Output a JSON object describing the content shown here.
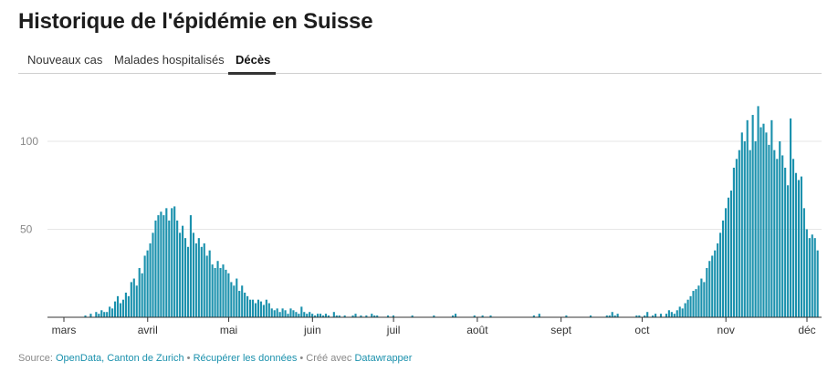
{
  "header": {
    "title": "Historique de l'épidémie en Suisse"
  },
  "tabs": [
    {
      "label": "Nouveaux cas",
      "active": false
    },
    {
      "label": "Malades hospitalisés",
      "active": false
    },
    {
      "label": "Décès",
      "active": true
    }
  ],
  "footer": {
    "source_prefix": "Source: ",
    "source_link": "OpenData, Canton de Zurich",
    "sep1": " • ",
    "data_link": "Récupérer les données",
    "sep2": " • Créé avec ",
    "tool_link": "Datawrapper"
  },
  "colors": {
    "bar": "#1b91ad",
    "grid": "#e6e6e6",
    "axis": "#333333",
    "label": "#888888"
  },
  "chart_data": {
    "type": "bar",
    "title": "",
    "xlabel": "",
    "ylabel": "",
    "ylim": [
      0,
      125
    ],
    "y_ticks": [
      50,
      100
    ],
    "grid": true,
    "x_axis_months": [
      {
        "label": "mars",
        "day": 1
      },
      {
        "label": "avril",
        "day": 32
      },
      {
        "label": "mai",
        "day": 62
      },
      {
        "label": "juin",
        "day": 93
      },
      {
        "label": "juil",
        "day": 123
      },
      {
        "label": "août",
        "day": 154
      },
      {
        "label": "sept",
        "day": 185
      },
      {
        "label": "oct",
        "day": 215
      },
      {
        "label": "nov",
        "day": 246
      },
      {
        "label": "déc",
        "day": 276
      }
    ],
    "first_day": 1,
    "series": [
      {
        "values": [
          0,
          0,
          0,
          0,
          0,
          0,
          0,
          0,
          0,
          0,
          0,
          0,
          1,
          0,
          2,
          0,
          3,
          2,
          4,
          3,
          3,
          6,
          5,
          9,
          12,
          8,
          10,
          14,
          12,
          20,
          22,
          18,
          28,
          25,
          35,
          38,
          42,
          48,
          55,
          58,
          60,
          58,
          62,
          55,
          62,
          63,
          55,
          48,
          52,
          45,
          40,
          58,
          48,
          42,
          45,
          40,
          42,
          35,
          38,
          30,
          28,
          32,
          28,
          30,
          27,
          25,
          20,
          18,
          22,
          15,
          18,
          14,
          12,
          10,
          10,
          8,
          10,
          9,
          7,
          10,
          8,
          5,
          4,
          5,
          3,
          5,
          4,
          2,
          5,
          4,
          3,
          2,
          6,
          3,
          2,
          3,
          2,
          1,
          2,
          2,
          1,
          2,
          1,
          0,
          3,
          1,
          1,
          0,
          1,
          0,
          0,
          1,
          2,
          0,
          1,
          0,
          1,
          0,
          2,
          1,
          1,
          0,
          0,
          0,
          1,
          0,
          1,
          0,
          0,
          0,
          0,
          0,
          0,
          1,
          0,
          0,
          0,
          0,
          0,
          0,
          0,
          1,
          0,
          0,
          0,
          0,
          0,
          0,
          1,
          2,
          0,
          0,
          0,
          0,
          0,
          0,
          1,
          0,
          0,
          1,
          0,
          0,
          1,
          0,
          0,
          0,
          0,
          0,
          0,
          0,
          0,
          0,
          0,
          0,
          0,
          0,
          0,
          0,
          1,
          0,
          2,
          0,
          0,
          0,
          0,
          0,
          0,
          0,
          0,
          0,
          1,
          0,
          0,
          0,
          0,
          0,
          0,
          0,
          0,
          1,
          0,
          0,
          0,
          0,
          0,
          1,
          1,
          3,
          1,
          2,
          0,
          0,
          0,
          0,
          0,
          0,
          1,
          1,
          0,
          1,
          3,
          0,
          1,
          2,
          0,
          2,
          0,
          2,
          4,
          3,
          2,
          4,
          6,
          5,
          8,
          10,
          12,
          15,
          16,
          18,
          22,
          20,
          28,
          32,
          35,
          38,
          42,
          48,
          55,
          62,
          68,
          72,
          85,
          90,
          95,
          105,
          100,
          112,
          95,
          115,
          100,
          120,
          108,
          110,
          105,
          98,
          112,
          95,
          90,
          100,
          92,
          85,
          75,
          113,
          90,
          82,
          78,
          80,
          62,
          50,
          45,
          47,
          45,
          38
        ],
        "color": "#1b91ad"
      }
    ]
  }
}
